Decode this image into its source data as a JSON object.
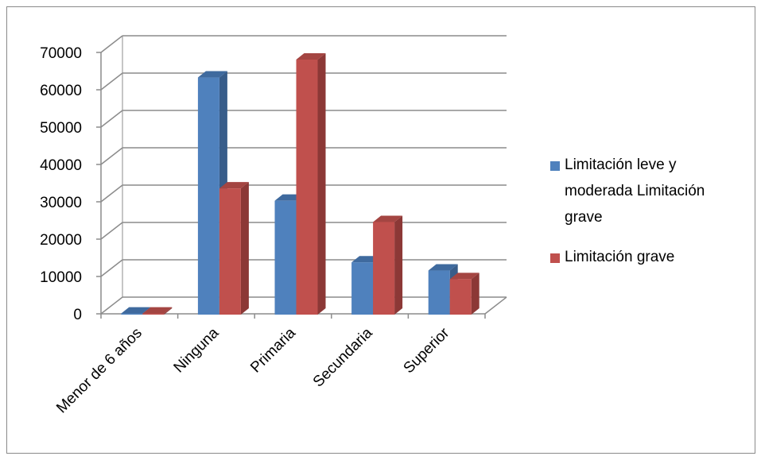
{
  "chart_data": {
    "type": "bar",
    "title": "",
    "xlabel": "",
    "ylabel": "",
    "categories": [
      "Menor de 6 años",
      "Ninguna",
      "Primaria",
      "Secundaria",
      "Superior"
    ],
    "series": [
      {
        "name": "Limitación leve y moderada Limitación grave",
        "values": [
          300,
          63500,
          30500,
          14000,
          11800
        ],
        "color": "#4F81BD",
        "color_side": "#385D8A",
        "color_top": "#3F6A9E"
      },
      {
        "name": "Limitación grave",
        "values": [
          300,
          33800,
          68300,
          24800,
          9500
        ],
        "color": "#C0504D",
        "color_side": "#8C3836",
        "color_top": "#A44542"
      }
    ],
    "ylim": [
      0,
      70000
    ],
    "yticks": [
      "0",
      "10000",
      "20000",
      "30000",
      "40000",
      "50000",
      "60000",
      "70000"
    ],
    "ytick_values": [
      0,
      10000,
      20000,
      30000,
      40000,
      50000,
      60000,
      70000
    ],
    "grid": true,
    "style": "3d-clustered-column",
    "legend_position": "right",
    "legend_lines": [
      [
        "Limitación leve y",
        "moderada Limitación",
        "grave"
      ],
      [
        "Limitación grave"
      ]
    ]
  }
}
